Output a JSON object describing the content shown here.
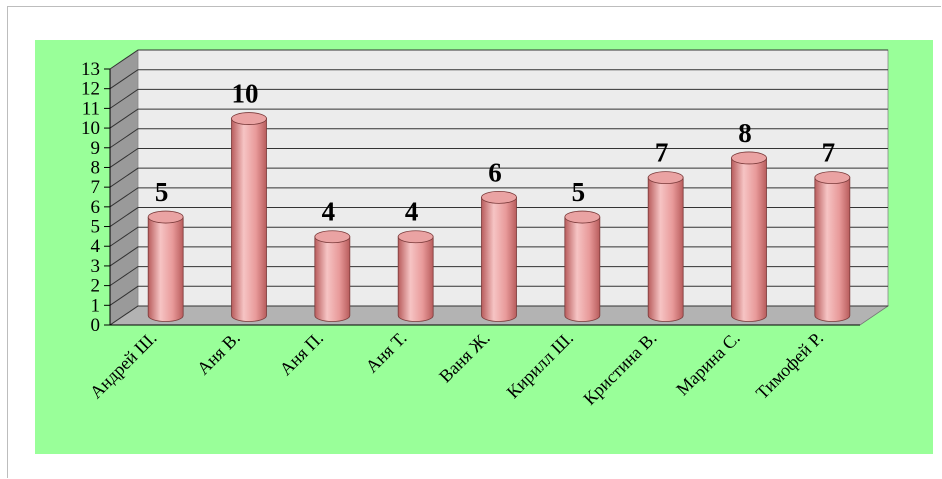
{
  "chart_data": {
    "type": "bar",
    "style": "3d-cylinder",
    "categories": [
      "Андрей Ш.",
      "Аня В.",
      "Аня П.",
      "Аня Т.",
      "Ваня Ж.",
      "Кирилл Ш.",
      "Кристина В.",
      "Марина С.",
      "Тимофей Р."
    ],
    "values": [
      5,
      10,
      4,
      4,
      6,
      5,
      7,
      8,
      7
    ],
    "data_labels": [
      "5",
      "10",
      "4",
      "4",
      "6",
      "5",
      "7",
      "8",
      "7"
    ],
    "ylim": [
      0,
      13
    ],
    "yticks": [
      "0",
      "1",
      "2",
      "3",
      "4",
      "5",
      "6",
      "7",
      "8",
      "9",
      "10",
      "11",
      "12",
      "13"
    ],
    "grid": true,
    "legend": "none",
    "colors": {
      "background": "#99ff99",
      "wall": "#ececec",
      "floor": "#b3b3b3",
      "side_wall": "#9a9a9a",
      "bar_fill": "#e89a9a",
      "bar_light": "#f6c4c4",
      "bar_dark": "#b85c5c",
      "bar_top": "#eaa3a3",
      "grid": "#333333"
    }
  }
}
